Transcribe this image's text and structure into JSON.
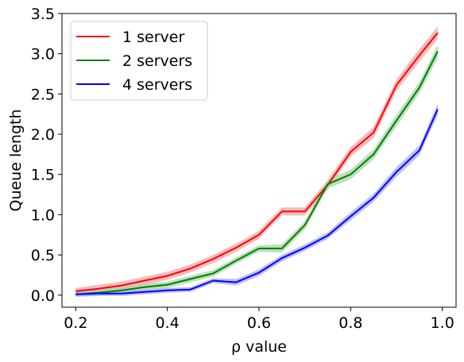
{
  "chart_data": {
    "type": "line",
    "title": "",
    "xlabel": "ρ value",
    "ylabel": "Queue length",
    "xlim": [
      0.17,
      1.03
    ],
    "ylim": [
      -0.15,
      3.5
    ],
    "xticks": [
      0.2,
      0.4,
      0.6,
      0.8,
      1.0
    ],
    "xtick_labels": [
      "0.2",
      "0.4",
      "0.6",
      "0.8",
      "1.0"
    ],
    "yticks": [
      0.0,
      0.5,
      1.0,
      1.5,
      2.0,
      2.5,
      3.0,
      3.5
    ],
    "ytick_labels": [
      "0.0",
      "0.5",
      "1.0",
      "1.5",
      "2.0",
      "2.5",
      "3.0",
      "3.5"
    ],
    "grid": false,
    "legend_position": "top-left",
    "x": [
      0.2,
      0.25,
      0.3,
      0.35,
      0.4,
      0.45,
      0.5,
      0.55,
      0.6,
      0.65,
      0.7,
      0.75,
      0.8,
      0.85,
      0.9,
      0.95,
      0.99
    ],
    "series": [
      {
        "name": "1 server",
        "color": "#ff0000",
        "band_color": "#f4a6a6",
        "values": [
          0.05,
          0.08,
          0.12,
          0.18,
          0.24,
          0.33,
          0.45,
          0.59,
          0.75,
          1.04,
          1.04,
          1.37,
          1.78,
          2.02,
          2.61,
          2.98,
          3.26
        ],
        "band": [
          0.04,
          0.05,
          0.05,
          0.05,
          0.05,
          0.05,
          0.05,
          0.05,
          0.05,
          0.05,
          0.05,
          0.06,
          0.06,
          0.07,
          0.07,
          0.08,
          0.08
        ]
      },
      {
        "name": "2 servers",
        "color": "#008000",
        "band_color": "#a3d6a3",
        "values": [
          0.01,
          0.03,
          0.06,
          0.1,
          0.13,
          0.2,
          0.27,
          0.43,
          0.58,
          0.58,
          0.87,
          1.38,
          1.5,
          1.75,
          2.17,
          2.58,
          3.03
        ],
        "band": [
          0.03,
          0.04,
          0.04,
          0.04,
          0.04,
          0.04,
          0.04,
          0.04,
          0.04,
          0.05,
          0.05,
          0.05,
          0.06,
          0.06,
          0.07,
          0.07,
          0.08
        ]
      },
      {
        "name": "4 servers",
        "color": "#0000ff",
        "band_color": "#a8a8f5",
        "values": [
          0.01,
          0.02,
          0.02,
          0.04,
          0.06,
          0.07,
          0.18,
          0.16,
          0.28,
          0.46,
          0.59,
          0.74,
          0.98,
          1.21,
          1.53,
          1.8,
          2.31
        ],
        "band": [
          0.03,
          0.03,
          0.03,
          0.03,
          0.03,
          0.03,
          0.03,
          0.04,
          0.04,
          0.04,
          0.04,
          0.04,
          0.05,
          0.05,
          0.06,
          0.06,
          0.07
        ]
      }
    ]
  }
}
